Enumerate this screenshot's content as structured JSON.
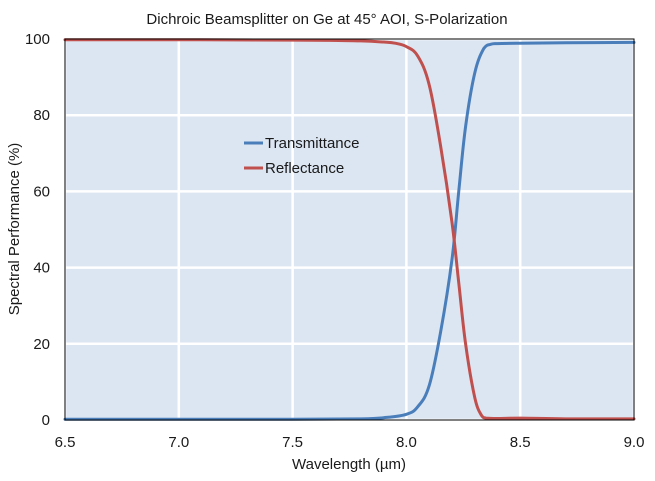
{
  "chart_data": {
    "type": "line",
    "title": "Dichroic Beamsplitter on Ge at 45° AOI, S-Polarization",
    "xlabel": "Wavelength (µm)",
    "ylabel": "Spectral Performance (%)",
    "xlim": [
      6.5,
      9.0
    ],
    "ylim": [
      0,
      100
    ],
    "x_ticks": [
      "6.5",
      "7.0",
      "7.5",
      "8.0",
      "8.5",
      "9.0"
    ],
    "y_ticks": [
      "0",
      "20",
      "40",
      "60",
      "80",
      "100"
    ],
    "grid": true,
    "legend_position": "upper-left-center",
    "plot_background": "#dce6f2",
    "series": [
      {
        "name": "Transmittance",
        "color": "#4a7ebb",
        "x": [
          6.5,
          7.0,
          7.5,
          7.8,
          7.9,
          8.0,
          8.05,
          8.1,
          8.15,
          8.2,
          8.23,
          8.26,
          8.3,
          8.34,
          8.37,
          8.4,
          8.5,
          8.7,
          9.0
        ],
        "y": [
          0.2,
          0.2,
          0.2,
          0.3,
          0.6,
          1.5,
          3.5,
          9,
          23,
          42,
          60,
          77,
          91,
          97.5,
          98.6,
          98.8,
          98.9,
          99,
          99.1
        ]
      },
      {
        "name": "Reflectance",
        "color": "#c0504d",
        "x": [
          6.5,
          7.0,
          7.5,
          7.7,
          7.8,
          7.9,
          7.95,
          8.0,
          8.05,
          8.1,
          8.15,
          8.2,
          8.23,
          8.26,
          8.3,
          8.33,
          8.35,
          8.4,
          8.5,
          8.7,
          9.0
        ],
        "y": [
          99.8,
          99.8,
          99.7,
          99.6,
          99.5,
          99.2,
          98.9,
          98,
          95.5,
          88,
          72,
          52,
          36,
          20,
          6,
          1.2,
          0.5,
          0.4,
          0.5,
          0.3,
          0.3
        ]
      }
    ]
  }
}
